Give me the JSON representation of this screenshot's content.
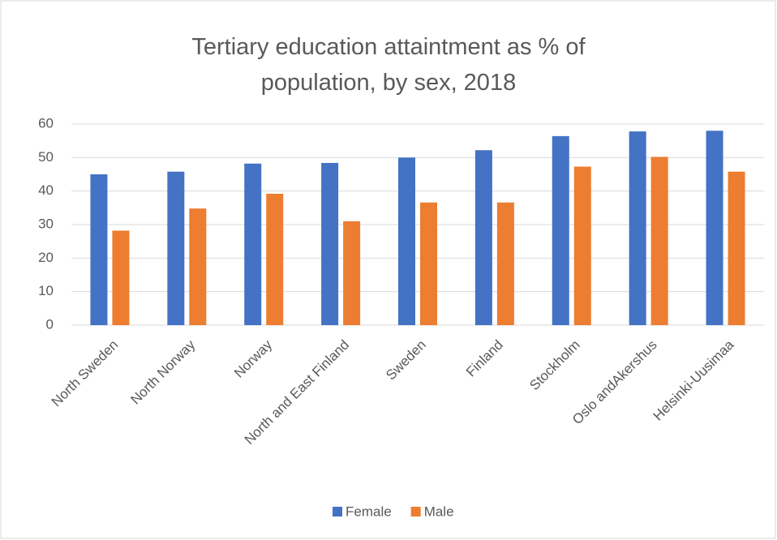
{
  "chart_data": {
    "type": "bar",
    "title": "Tertiary education attaintment as % of population, by sex, 2018",
    "categories": [
      "North Sweden",
      "North Norway",
      "Norway",
      "North and East Finland",
      "Sweden",
      "Finland",
      "Stockholm",
      "Oslo andAkershus",
      "Helsinki-Uusimaa"
    ],
    "series": [
      {
        "name": "Female",
        "color": "#4472c4",
        "values": [
          45.0,
          45.8,
          48.2,
          48.4,
          50.0,
          52.2,
          56.4,
          57.8,
          58.0
        ]
      },
      {
        "name": "Male",
        "color": "#ed7d31",
        "values": [
          28.2,
          34.8,
          39.2,
          31.0,
          36.6,
          36.6,
          47.3,
          50.2,
          45.8
        ]
      }
    ],
    "ylim": [
      0,
      60
    ],
    "yticks": [
      0,
      10,
      20,
      30,
      40,
      50,
      60
    ],
    "grid": true,
    "legend": "bottom"
  }
}
